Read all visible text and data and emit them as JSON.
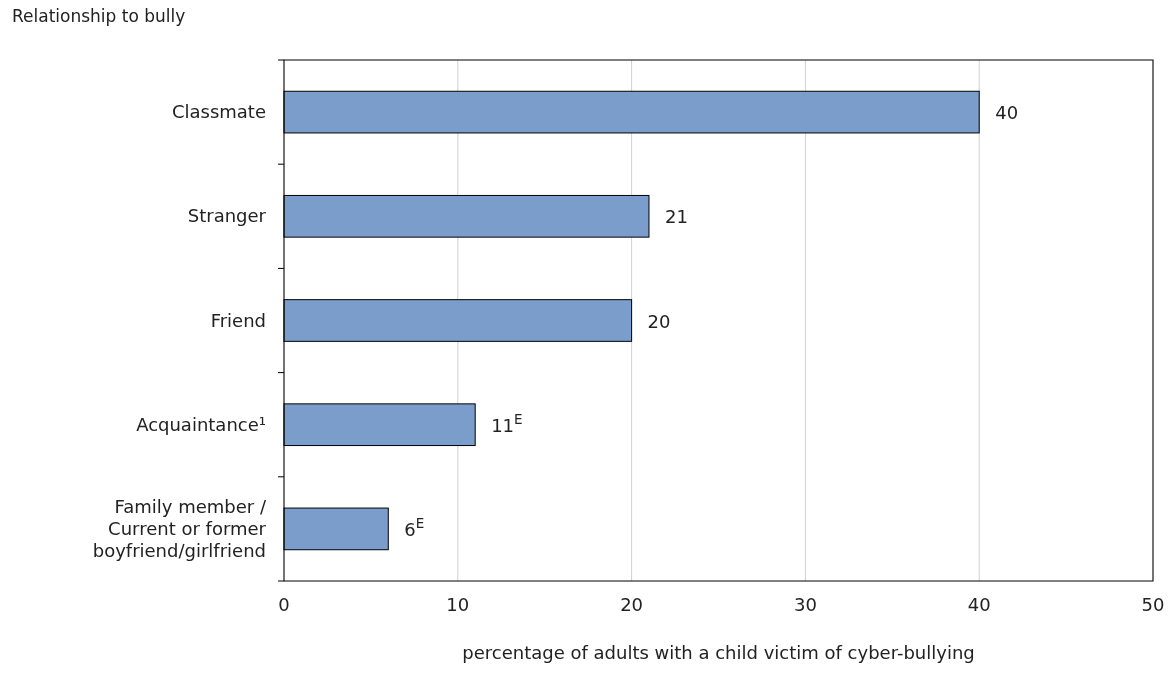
{
  "chart_data": {
    "type": "bar",
    "orientation": "horizontal",
    "ylabel": "Relationship to bully",
    "xlabel": "percentage of adults with a child victim of cyber-bullying",
    "categories": [
      "Classmate",
      "Stranger",
      "Friend",
      "Acquaintance¹",
      "Family member /\nCurrent or former\nboyfriend/girlfriend"
    ],
    "values": [
      40,
      21,
      20,
      11,
      6
    ],
    "color": "#7b9dcb",
    "value_labels": [
      "40",
      "21",
      "20",
      "11$^{E}$",
      "6$^{E}$"
    ],
    "xlim": [
      0,
      50
    ],
    "xticks": [
      0,
      10,
      20,
      30,
      40,
      50
    ],
    "grid": "x"
  }
}
